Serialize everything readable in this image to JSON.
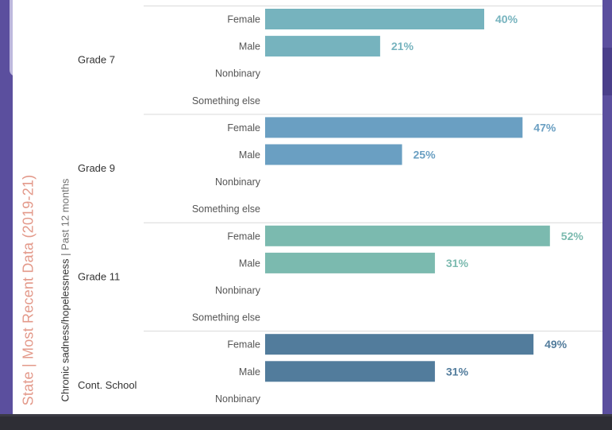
{
  "side_title": "State | Most Recent Data (2019-21)",
  "indicator": {
    "name": "Chronic sadness/hopelessness",
    "period": " | Past 12 months"
  },
  "colors": {
    "background": "#5b4f9e",
    "panel": "#ffffff",
    "side_title": "#e3998a"
  },
  "chart_data": {
    "type": "bar",
    "orientation": "horizontal",
    "xlim": [
      0,
      60
    ],
    "groups": [
      {
        "name": "Grade 7",
        "color": "#76b3be",
        "categories": [
          "Female",
          "Male",
          "Nonbinary",
          "Something else"
        ],
        "values": [
          40,
          21,
          null,
          null
        ],
        "labels": [
          "40%",
          "21%",
          "",
          ""
        ]
      },
      {
        "name": "Grade 9",
        "color": "#6a9fc2",
        "categories": [
          "Female",
          "Male",
          "Nonbinary",
          "Something else"
        ],
        "values": [
          47,
          25,
          null,
          null
        ],
        "labels": [
          "47%",
          "25%",
          "",
          ""
        ]
      },
      {
        "name": "Grade 11",
        "color": "#7bbaaf",
        "categories": [
          "Female",
          "Male",
          "Nonbinary",
          "Something else"
        ],
        "values": [
          52,
          31,
          null,
          null
        ],
        "labels": [
          "52%",
          "31%",
          "",
          ""
        ]
      },
      {
        "name": "Cont. School",
        "color": "#527c9c",
        "categories": [
          "Female",
          "Male",
          "Nonbinary"
        ],
        "values": [
          49,
          31,
          null
        ],
        "labels": [
          "49%",
          "31%",
          ""
        ]
      }
    ]
  }
}
